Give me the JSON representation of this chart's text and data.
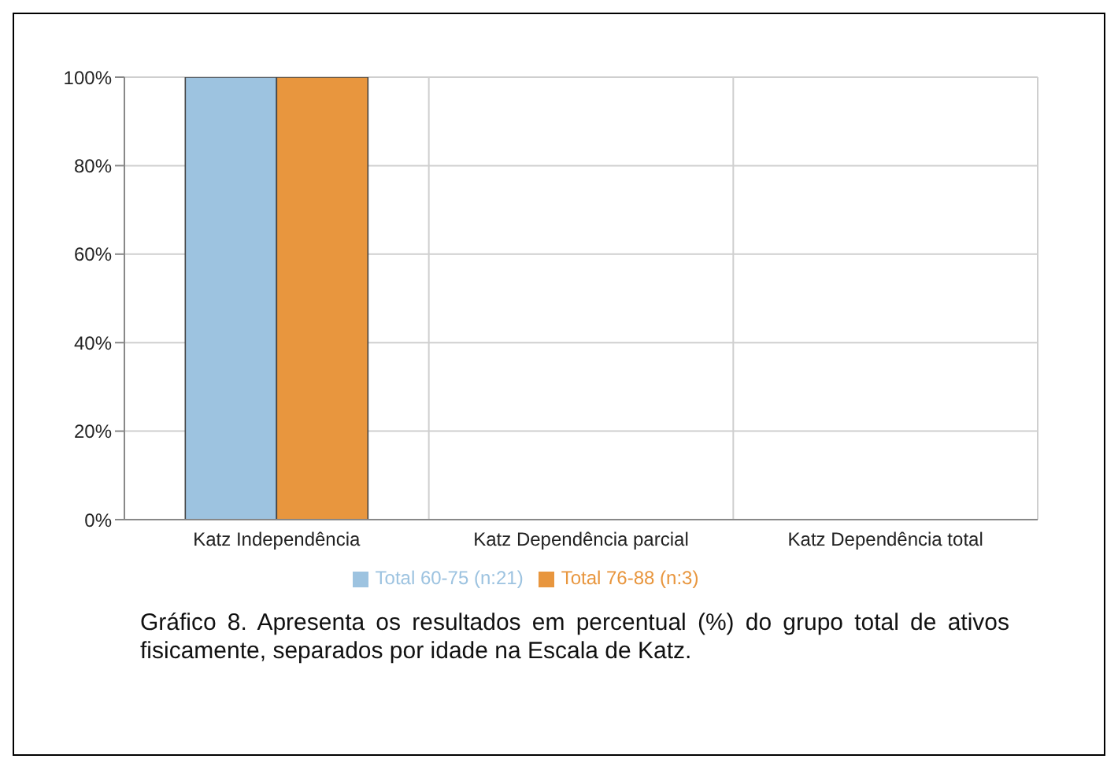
{
  "chart_data": {
    "type": "bar",
    "categories": [
      "Katz Independência",
      "Katz Dependência parcial",
      "Katz Dependência total"
    ],
    "series": [
      {
        "name": "Total 60-75 (n:21)",
        "color": "#9dc3e0",
        "values": [
          100,
          0,
          0
        ]
      },
      {
        "name": "Total 76-88 (n:3)",
        "color": "#e8963e",
        "values": [
          100,
          0,
          0
        ]
      }
    ],
    "ylim": [
      0,
      100
    ],
    "yticks": [
      {
        "value": 0,
        "label": "0%"
      },
      {
        "value": 20,
        "label": "20%"
      },
      {
        "value": 40,
        "label": "40%"
      },
      {
        "value": 60,
        "label": "60%"
      },
      {
        "value": 80,
        "label": "80%"
      },
      {
        "value": 100,
        "label": "100%"
      }
    ],
    "grid": true,
    "legend": "bottom",
    "annotations": [
      "Gráfico 8. Apresenta os resultados em percentual (%) do grupo total de ativos fisicamente, separados por idade na Escala de Katz."
    ]
  }
}
